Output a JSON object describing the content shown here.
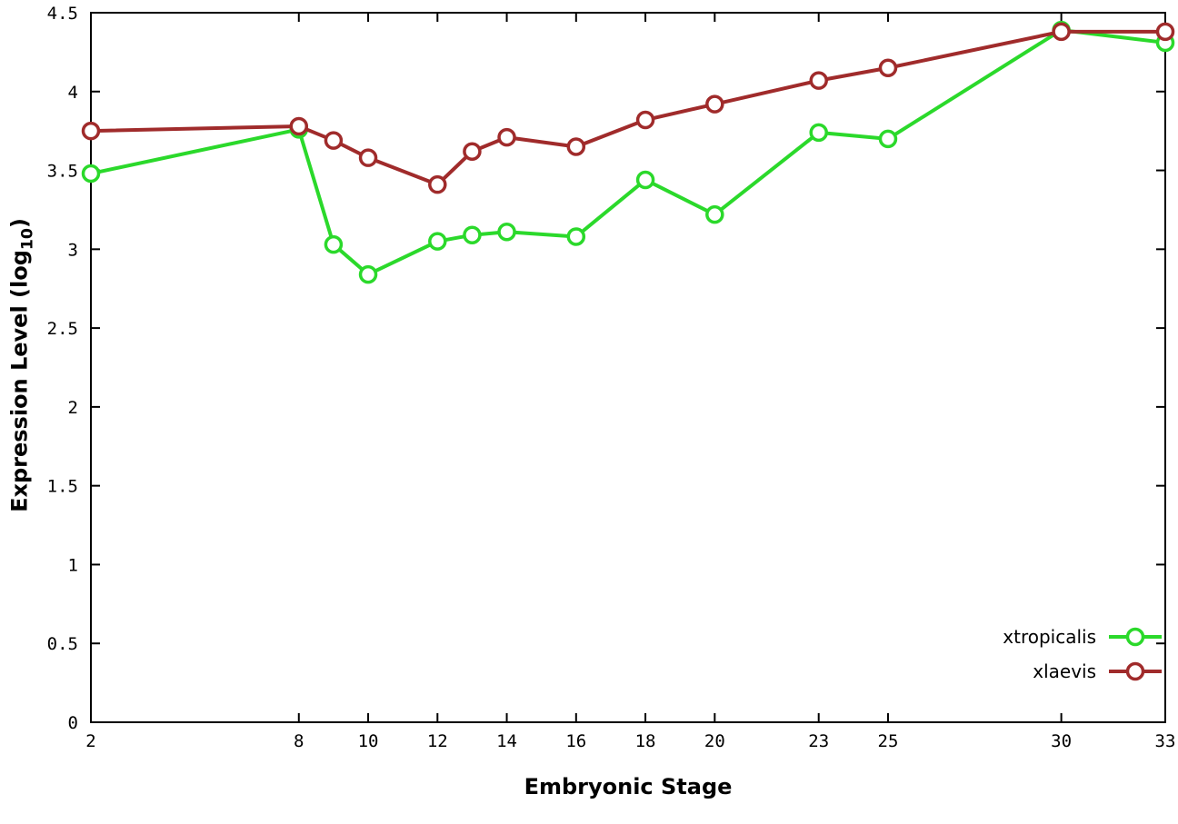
{
  "labels": {
    "ylabel_prefix": "Expression Level (log",
    "ylabel_sub": "10",
    "ylabel_suffix": ")",
    "xlabel": "Embryonic Stage"
  },
  "colors": {
    "xtropicalis": "#2bd92b",
    "xlaevis": "#a02b2b",
    "axis": "#000000",
    "background": "#ffffff"
  },
  "chart_data": {
    "type": "line",
    "title": "",
    "xlabel": "Embryonic Stage",
    "ylabel": "Expression Level (log10)",
    "xlim": [
      2,
      33
    ],
    "ylim": [
      0,
      4.5
    ],
    "xticks": [
      2,
      8,
      10,
      12,
      14,
      16,
      18,
      20,
      23,
      25,
      30,
      33
    ],
    "yticks": [
      0,
      0.5,
      1,
      1.5,
      2,
      2.5,
      3,
      3.5,
      4,
      4.5
    ],
    "grid": false,
    "legend_position": "bottom-right",
    "x": [
      2,
      8,
      9,
      10,
      12,
      13,
      14,
      16,
      18,
      20,
      23,
      25,
      30,
      33
    ],
    "series": [
      {
        "name": "xtropicalis",
        "color": "#2bd92b",
        "values": [
          3.48,
          3.76,
          3.03,
          2.84,
          3.05,
          3.09,
          3.11,
          3.08,
          3.44,
          3.22,
          3.74,
          3.7,
          4.39,
          4.31
        ]
      },
      {
        "name": "xlaevis",
        "color": "#a02b2b",
        "values": [
          3.75,
          3.78,
          3.69,
          3.58,
          3.41,
          3.62,
          3.71,
          3.65,
          3.82,
          3.92,
          4.07,
          4.15,
          4.38,
          4.38
        ]
      }
    ]
  }
}
